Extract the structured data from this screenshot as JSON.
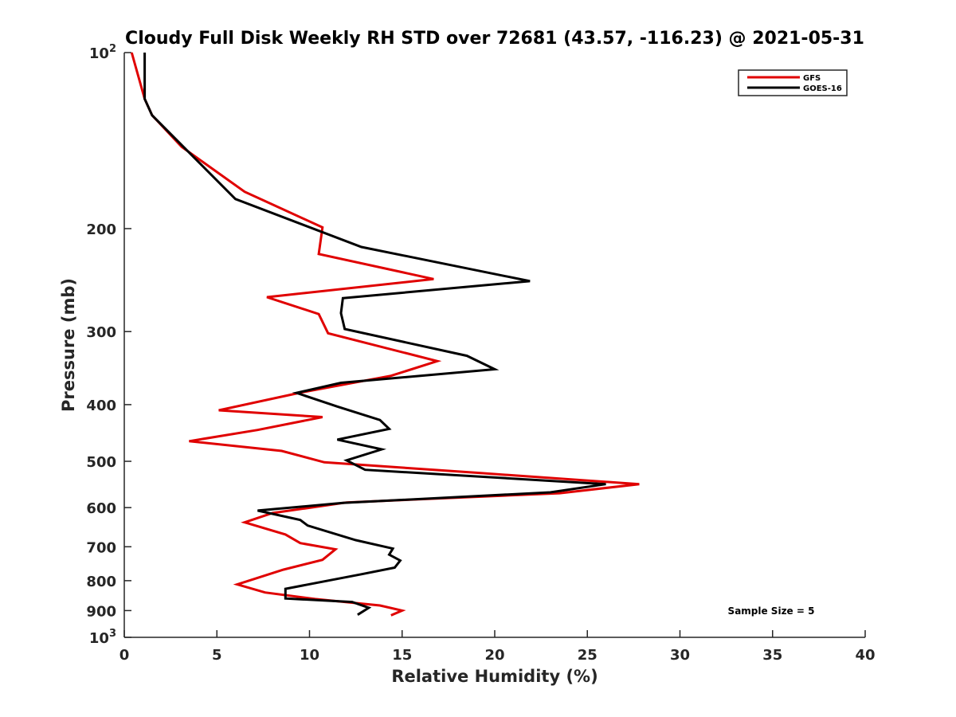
{
  "chart_data": {
    "type": "line",
    "title": "Cloudy Full Disk Weekly RH STD over 72681 (43.57, -116.23) @ 2021-05-31",
    "xlabel": "Relative Humidity (%)",
    "ylabel": "Pressure (mb)",
    "xlim": [
      0,
      40
    ],
    "ylim": [
      100,
      1000
    ],
    "y_scale": "log",
    "y_reversed": true,
    "grid": false,
    "legend_position": "top-right",
    "xticks": [
      "0",
      "5",
      "10",
      "15",
      "20",
      "25",
      "30",
      "35",
      "40"
    ],
    "yticks": [
      {
        "value": 100,
        "base": "10",
        "exp": "2"
      },
      {
        "value": 200,
        "label": "200"
      },
      {
        "value": 300,
        "label": "300"
      },
      {
        "value": 400,
        "label": "400"
      },
      {
        "value": 500,
        "label": "500"
      },
      {
        "value": 600,
        "label": "600"
      },
      {
        "value": 700,
        "label": "700"
      },
      {
        "value": 800,
        "label": "800"
      },
      {
        "value": 900,
        "label": "900"
      },
      {
        "value": 1000,
        "base": "10",
        "exp": "3"
      }
    ],
    "annotation": "Sample Size = 5",
    "series": [
      {
        "name": "GFS",
        "color": "#e00000",
        "points": [
          [
            0.4,
            100
          ],
          [
            1.1,
            120
          ],
          [
            1.5,
            128
          ],
          [
            3.1,
            145
          ],
          [
            6.5,
            173
          ],
          [
            10.7,
            199
          ],
          [
            10.5,
            221
          ],
          [
            16.7,
            244
          ],
          [
            7.7,
            262
          ],
          [
            10.5,
            280
          ],
          [
            11.0,
            302
          ],
          [
            16.9,
            337
          ],
          [
            14.4,
            357
          ],
          [
            9.6,
            381
          ],
          [
            5.1,
            409
          ],
          [
            10.7,
            420
          ],
          [
            7.2,
            442
          ],
          [
            3.5,
            462
          ],
          [
            8.5,
            480
          ],
          [
            10.8,
            502
          ],
          [
            19.0,
            523
          ],
          [
            27.8,
            547
          ],
          [
            23.5,
            567
          ],
          [
            12.0,
            588
          ],
          [
            8.0,
            613
          ],
          [
            6.5,
            636
          ],
          [
            8.7,
            667
          ],
          [
            9.5,
            690
          ],
          [
            11.4,
            707
          ],
          [
            10.7,
            737
          ],
          [
            8.6,
            766
          ],
          [
            6.1,
            812
          ],
          [
            7.6,
            838
          ],
          [
            10.3,
            860
          ],
          [
            13.8,
            882
          ],
          [
            15.0,
            900
          ],
          [
            14.4,
            917
          ]
        ]
      },
      {
        "name": "GOES-16",
        "color": "#000000",
        "points": [
          [
            1.1,
            100
          ],
          [
            1.1,
            120
          ],
          [
            1.5,
            128
          ],
          [
            3.2,
            145
          ],
          [
            6.0,
            178
          ],
          [
            12.8,
            215
          ],
          [
            21.9,
            246
          ],
          [
            11.8,
            263
          ],
          [
            11.7,
            279
          ],
          [
            11.9,
            297
          ],
          [
            18.5,
            330
          ],
          [
            20.0,
            348
          ],
          [
            11.7,
            367
          ],
          [
            9.3,
            382
          ],
          [
            11.5,
            403
          ],
          [
            13.8,
            425
          ],
          [
            14.3,
            440
          ],
          [
            11.5,
            459
          ],
          [
            13.9,
            477
          ],
          [
            12.0,
            498
          ],
          [
            13.0,
            517
          ],
          [
            26.0,
            547
          ],
          [
            23.0,
            565
          ],
          [
            11.8,
            589
          ],
          [
            7.2,
            607
          ],
          [
            9.5,
            630
          ],
          [
            9.9,
            644
          ],
          [
            12.5,
            682
          ],
          [
            14.5,
            705
          ],
          [
            14.3,
            722
          ],
          [
            14.9,
            739
          ],
          [
            14.6,
            760
          ],
          [
            12.8,
            780
          ],
          [
            8.7,
            826
          ],
          [
            8.7,
            858
          ],
          [
            12.3,
            870
          ],
          [
            13.2,
            890
          ],
          [
            12.6,
            915
          ]
        ]
      }
    ]
  }
}
